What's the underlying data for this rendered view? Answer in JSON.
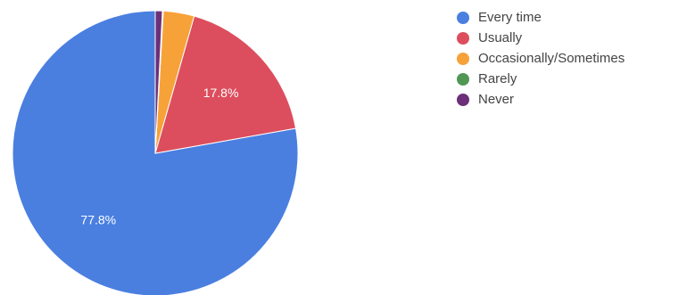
{
  "chart_data": {
    "type": "pie",
    "categories": [
      "Every time",
      "Usually",
      "Occasionally/Sometimes",
      "Rarely",
      "Never"
    ],
    "values": [
      77.8,
      17.8,
      3.5,
      0.1,
      0.8
    ],
    "value_labels": [
      "77.8%",
      "17.8%",
      "",
      "",
      ""
    ],
    "colors": [
      "#4a7fe0",
      "#dc4e5e",
      "#f7a239",
      "#519655",
      "#6d2f78"
    ],
    "start_angle_deg": 90,
    "direction": "counterclockwise",
    "legend_position": "right"
  }
}
